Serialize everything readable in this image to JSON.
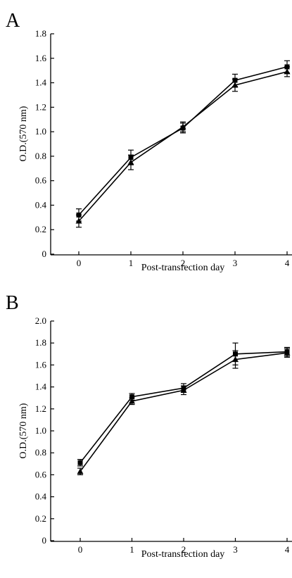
{
  "chart_data": [
    {
      "type": "line",
      "panel_label": "A",
      "title": "",
      "xlabel": "Post-transfection day",
      "ylabel": "O.D.(570 nm)",
      "x": [
        0,
        1,
        2,
        3,
        4
      ],
      "xticks": [
        "0",
        "1",
        "2",
        "3",
        "4"
      ],
      "ylim": [
        0,
        1.8
      ],
      "yticks": [
        "0",
        "0.2",
        "0.4",
        "0.6",
        "0.8",
        "1.0",
        "1.2",
        "1.4",
        "1.6",
        "1.8"
      ],
      "grid": false,
      "series": [
        {
          "marker": "square",
          "values": [
            0.32,
            0.79,
            1.03,
            1.42,
            1.53
          ],
          "errors": [
            0.05,
            0.06,
            0.04,
            0.05,
            0.05
          ]
        },
        {
          "marker": "triangle",
          "values": [
            0.27,
            0.75,
            1.04,
            1.38,
            1.49
          ],
          "errors": [
            0.05,
            0.06,
            0.04,
            0.05,
            0.04
          ]
        }
      ]
    },
    {
      "type": "line",
      "panel_label": "B",
      "title": "",
      "xlabel": "Post-transfection day",
      "ylabel": "O.D.(570 nm)",
      "x": [
        0,
        1,
        2,
        3,
        4
      ],
      "xticks": [
        "0",
        "1",
        "2",
        "3",
        "4"
      ],
      "ylim": [
        0,
        2.0
      ],
      "yticks": [
        "0",
        "0.2",
        "0.4",
        "0.6",
        "0.8",
        "1.0",
        "1.2",
        "1.4",
        "1.6",
        "1.8",
        "2.0"
      ],
      "grid": false,
      "series": [
        {
          "marker": "square",
          "values": [
            0.71,
            1.31,
            1.39,
            1.7,
            1.72
          ],
          "errors": [
            0.03,
            0.03,
            0.04,
            0.1,
            0.04
          ]
        },
        {
          "marker": "triangle",
          "values": [
            0.63,
            1.27,
            1.37,
            1.65,
            1.71
          ],
          "errors": [
            0.03,
            0.03,
            0.04,
            0.08,
            0.04
          ]
        }
      ]
    }
  ]
}
